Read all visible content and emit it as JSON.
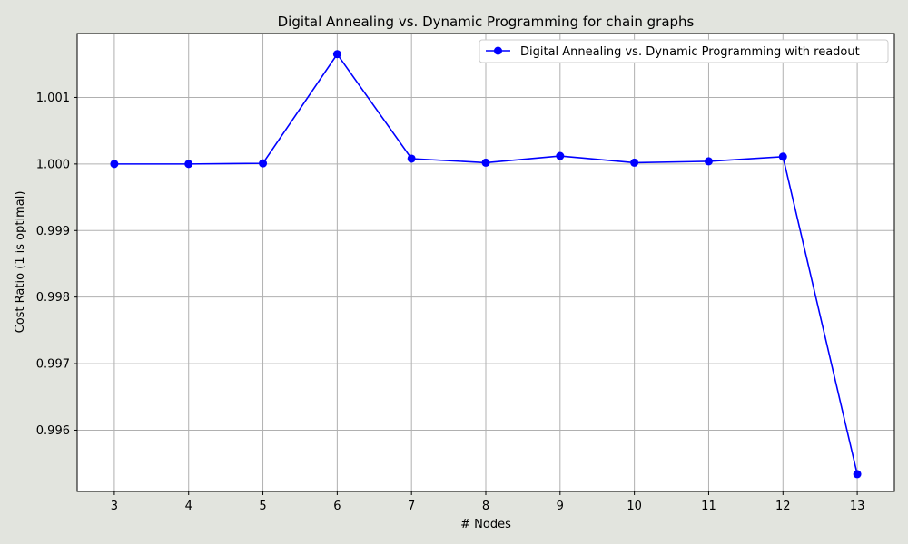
{
  "chart_data": {
    "type": "line",
    "title": "Digital Annealing vs. Dynamic Programming for chain graphs",
    "xlabel": "# Nodes",
    "ylabel": "Cost Ratio (1 is optimal)",
    "x": [
      3,
      4,
      5,
      6,
      7,
      8,
      9,
      10,
      11,
      12,
      13
    ],
    "xticks": [
      "3",
      "4",
      "5",
      "6",
      "7",
      "8",
      "9",
      "10",
      "11",
      "12",
      "13"
    ],
    "yticks": [
      "0.996",
      "0.997",
      "0.998",
      "0.999",
      "1.000",
      "1.001"
    ],
    "ytick_values": [
      0.996,
      0.997,
      0.998,
      0.999,
      1.0,
      1.001
    ],
    "xlim": [
      2.5,
      13.5
    ],
    "ylim": [
      0.99508,
      1.00196
    ],
    "grid": true,
    "legend_position": "top-right",
    "series": [
      {
        "name": "Digital Annealing vs. Dynamic Programming with readout",
        "color": "#0000ff",
        "marker": "circle",
        "values": [
          1.0,
          1.0,
          1.00001,
          1.00165,
          1.00008,
          1.00002,
          1.00012,
          1.00002,
          1.00004,
          1.00011,
          0.99534
        ]
      }
    ]
  }
}
